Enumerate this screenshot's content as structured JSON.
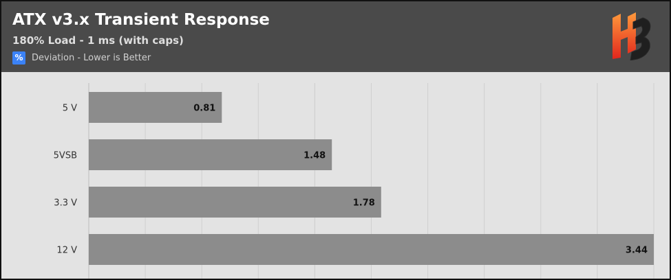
{
  "header": {
    "title": "ATX v3.x Transient Response",
    "subtitle": "180% Load - 1 ms (with caps)",
    "legend_symbol": "%",
    "legend_label": "Deviation - Lower is Better",
    "legend_color": "#3b82f6",
    "logo_icon": "hb-logo-icon"
  },
  "chart_data": {
    "type": "bar",
    "orientation": "horizontal",
    "title": "ATX v3.x Transient Response",
    "subtitle": "180% Load - 1 ms (with caps)",
    "categories": [
      "5 V",
      "5VSB",
      "3.3 V",
      "12 V"
    ],
    "series": [
      {
        "name": "Deviation - Lower is Better",
        "values": [
          0.81,
          1.48,
          1.78,
          3.44
        ]
      }
    ],
    "xlim": [
      0,
      3.44
    ],
    "grid": true,
    "legend_position": "top-left",
    "bar_color": "#8c8c8c"
  }
}
